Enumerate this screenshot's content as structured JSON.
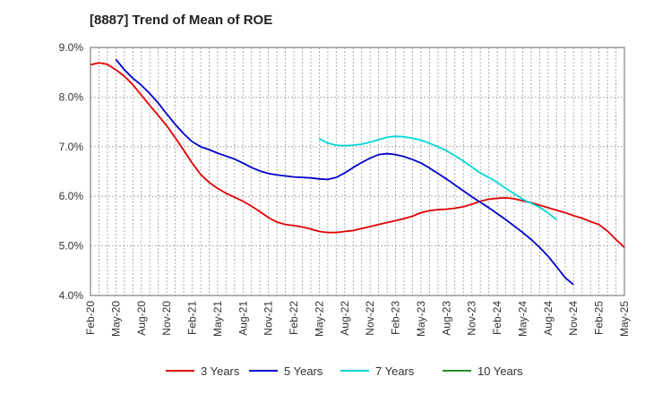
{
  "chart_data": {
    "type": "line",
    "title": "[8887]  Trend of Mean of ROE",
    "x_ticks": [
      "Feb-20",
      "May-20",
      "Aug-20",
      "Nov-20",
      "Feb-21",
      "May-21",
      "Aug-21",
      "Nov-21",
      "Feb-22",
      "May-22",
      "Aug-22",
      "Nov-22",
      "Feb-23",
      "May-23",
      "Aug-23",
      "Nov-23",
      "Feb-24",
      "May-24",
      "Aug-24",
      "Nov-24",
      "Feb-25",
      "May-25"
    ],
    "y_ticks": [
      "4.0%",
      "5.0%",
      "6.0%",
      "7.0%",
      "8.0%",
      "9.0%"
    ],
    "ylim": [
      4.0,
      9.0
    ],
    "grid": true,
    "legend_position": "bottom",
    "series": [
      {
        "name": "3 Years",
        "color": "#e00000",
        "start_index": 0,
        "values": [
          8.65,
          8.69,
          8.66,
          8.55,
          8.42,
          8.25,
          8.04,
          7.83,
          7.63,
          7.42,
          7.18,
          6.93,
          6.67,
          6.44,
          6.28,
          6.16,
          6.06,
          5.98,
          5.9,
          5.8,
          5.69,
          5.57,
          5.48,
          5.43,
          5.41,
          5.38,
          5.34,
          5.29,
          5.27,
          5.27,
          5.29,
          5.31,
          5.35,
          5.39,
          5.43,
          5.47,
          5.51,
          5.55,
          5.6,
          5.67,
          5.71,
          5.73,
          5.74,
          5.76,
          5.79,
          5.84,
          5.9,
          5.94,
          5.96,
          5.97,
          5.95,
          5.91,
          5.87,
          5.82,
          5.77,
          5.72,
          5.67,
          5.61,
          5.56,
          5.49,
          5.43,
          5.3,
          5.13,
          4.97
        ]
      },
      {
        "name": "5 Years",
        "color": "#0000cc",
        "start_index": 3,
        "values": [
          8.76,
          8.55,
          8.38,
          8.24,
          8.07,
          7.88,
          7.66,
          7.45,
          7.26,
          7.1,
          7.0,
          6.94,
          6.87,
          6.81,
          6.75,
          6.67,
          6.58,
          6.51,
          6.46,
          6.43,
          6.41,
          6.39,
          6.38,
          6.37,
          6.35,
          6.34,
          6.38,
          6.47,
          6.58,
          6.68,
          6.77,
          6.84,
          6.86,
          6.84,
          6.8,
          6.74,
          6.67,
          6.57,
          6.46,
          6.35,
          6.23,
          6.11,
          5.99,
          5.88,
          5.77,
          5.65,
          5.53,
          5.4,
          5.27,
          5.13,
          4.97,
          4.79,
          4.58,
          4.36,
          4.22
        ]
      },
      {
        "name": "7 Years",
        "color": "#00d8d8",
        "start_index": 27,
        "values": [
          7.16,
          7.07,
          7.03,
          7.02,
          7.03,
          7.05,
          7.09,
          7.14,
          7.19,
          7.21,
          7.2,
          7.17,
          7.13,
          7.07,
          7.0,
          6.92,
          6.82,
          6.71,
          6.59,
          6.47,
          6.38,
          6.28,
          6.16,
          6.05,
          5.94,
          5.86,
          5.78,
          5.66,
          5.53
        ]
      },
      {
        "name": "10 Years",
        "color": "#228b22",
        "start_index": 0,
        "values": []
      }
    ]
  }
}
